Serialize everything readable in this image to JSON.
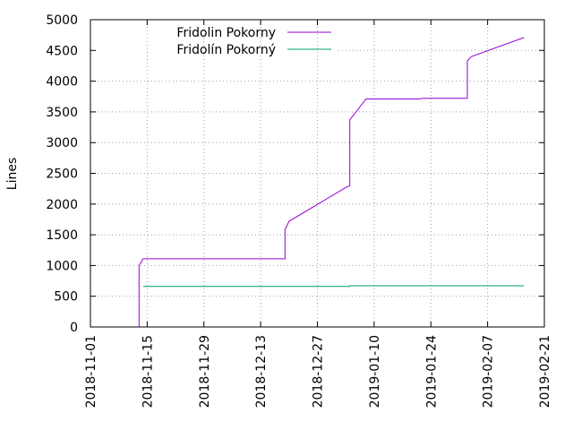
{
  "chart_data": {
    "type": "line",
    "title": "",
    "xlabel": "",
    "ylabel": "Lines",
    "xlim": [
      "2018-11-01",
      "2019-02-21"
    ],
    "ylim": [
      0,
      5000
    ],
    "x_ticks": [
      "2018-11-01",
      "2018-11-15",
      "2018-11-29",
      "2018-12-13",
      "2018-12-27",
      "2019-01-10",
      "2019-01-24",
      "2019-02-07",
      "2019-02-21"
    ],
    "y_ticks": [
      0,
      500,
      1000,
      1500,
      2000,
      2500,
      3000,
      3500,
      4000,
      4500,
      5000
    ],
    "grid": true,
    "legend_position": "top-left",
    "series": [
      {
        "name": "Fridolin Pokorny",
        "color": "#9400d3",
        "points": [
          [
            "2018-11-13",
            0
          ],
          [
            "2018-11-13",
            1000
          ],
          [
            "2018-11-14",
            1110
          ],
          [
            "2018-12-19",
            1110
          ],
          [
            "2018-12-19",
            1580
          ],
          [
            "2018-12-20",
            1720
          ],
          [
            "2019-01-03",
            2270
          ],
          [
            "2019-01-04",
            2300
          ],
          [
            "2019-01-04",
            3370
          ],
          [
            "2019-01-08",
            3710
          ],
          [
            "2019-01-21",
            3710
          ],
          [
            "2019-01-22",
            3720
          ],
          [
            "2019-02-02",
            3720
          ],
          [
            "2019-02-02",
            4330
          ],
          [
            "2019-02-03",
            4400
          ],
          [
            "2019-02-16",
            4710
          ]
        ]
      },
      {
        "name": "Fridolín Pokorný",
        "color": "#009e73",
        "points": [
          [
            "2018-11-14",
            660
          ],
          [
            "2019-01-04",
            660
          ],
          [
            "2019-01-04",
            670
          ],
          [
            "2019-02-16",
            670
          ]
        ]
      }
    ]
  }
}
